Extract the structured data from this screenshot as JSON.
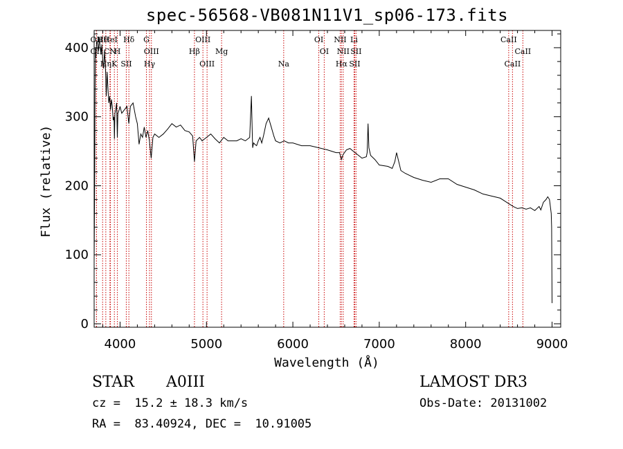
{
  "chart_data": {
    "type": "line",
    "title": "spec-56568-VB081N11V1_sp06-173.fits",
    "xlabel": "Wavelength (Å)",
    "ylabel": "Flux (relative)",
    "xlim": [
      3700,
      9100
    ],
    "ylim": [
      -5,
      425
    ],
    "x_ticks": [
      "4000",
      "5000",
      "6000",
      "7000",
      "8000",
      "9000"
    ],
    "y_ticks": [
      "0",
      "100",
      "200",
      "300",
      "400"
    ],
    "grid": false,
    "series": [
      {
        "name": "spectrum flux",
        "x": [
          3700,
          3703,
          3706,
          3708,
          3710,
          3712,
          3716,
          3720,
          3730,
          3740,
          3750,
          3760,
          3770,
          3780,
          3790,
          3800,
          3810,
          3820,
          3830,
          3840,
          3850,
          3860,
          3870,
          3880,
          3890,
          3900,
          3910,
          3920,
          3930,
          3935,
          3940,
          3950,
          3960,
          3968,
          3975,
          3990,
          4000,
          4020,
          4050,
          4080,
          4101,
          4120,
          4150,
          4180,
          4200,
          4220,
          4240,
          4260,
          4280,
          4300,
          4320,
          4340,
          4360,
          4380,
          4400,
          4450,
          4500,
          4550,
          4600,
          4650,
          4700,
          4750,
          4800,
          4840,
          4861,
          4880,
          4920,
          4950,
          5000,
          5050,
          5100,
          5150,
          5200,
          5250,
          5300,
          5350,
          5400,
          5450,
          5500,
          5520,
          5530,
          5535,
          5545,
          5560,
          5580,
          5600,
          5620,
          5640,
          5660,
          5690,
          5720,
          5750,
          5780,
          5800,
          5850,
          5900,
          5950,
          6000,
          6100,
          6200,
          6300,
          6400,
          6450,
          6500,
          6540,
          6563,
          6580,
          6620,
          6660,
          6700,
          6750,
          6800,
          6850,
          6860,
          6870,
          6880,
          6900,
          6950,
          7000,
          7100,
          7150,
          7180,
          7200,
          7250,
          7300,
          7400,
          7500,
          7600,
          7700,
          7800,
          7900,
          8000,
          8100,
          8200,
          8300,
          8400,
          8450,
          8500,
          8550,
          8600,
          8650,
          8700,
          8750,
          8800,
          8850,
          8870,
          8900,
          8930,
          8950,
          8970,
          8990,
          8995,
          9000
        ],
        "values": [
          90,
          150,
          200,
          260,
          320,
          360,
          400,
          385,
          410,
          405,
          395,
          415,
          400,
          390,
          405,
          380,
          370,
          395,
          375,
          330,
          365,
          340,
          320,
          330,
          310,
          325,
          315,
          295,
          300,
          268,
          305,
          310,
          320,
          270,
          305,
          310,
          315,
          305,
          310,
          315,
          290,
          315,
          320,
          300,
          290,
          260,
          275,
          270,
          285,
          270,
          280,
          265,
          240,
          270,
          275,
          270,
          275,
          282,
          290,
          285,
          288,
          280,
          278,
          272,
          235,
          265,
          270,
          265,
          270,
          275,
          268,
          262,
          270,
          265,
          265,
          265,
          268,
          265,
          270,
          330,
          278,
          255,
          262,
          260,
          258,
          265,
          270,
          262,
          272,
          290,
          298,
          285,
          272,
          265,
          262,
          265,
          262,
          262,
          258,
          258,
          255,
          252,
          250,
          248,
          248,
          238,
          245,
          252,
          254,
          250,
          245,
          240,
          242,
          248,
          290,
          255,
          244,
          238,
          230,
          228,
          225,
          235,
          248,
          222,
          218,
          212,
          208,
          205,
          210,
          210,
          202,
          198,
          194,
          188,
          185,
          182,
          178,
          174,
          170,
          167,
          168,
          166,
          168,
          164,
          170,
          165,
          176,
          180,
          184,
          180,
          160,
          140,
          30
        ]
      }
    ],
    "line_markers": [
      {
        "label": "Hθ",
        "wavelength": 3798
      },
      {
        "label": "OII",
        "wavelength": 3727
      },
      {
        "label": "Hη",
        "wavelength": 3835
      },
      {
        "label": "OII",
        "wavelength": 3727
      },
      {
        "label": "CN",
        "wavelength": 3883
      },
      {
        "label": "K",
        "wavelength": 3934
      },
      {
        "label": "HeI",
        "wavelength": 3889
      },
      {
        "label": "H",
        "wavelength": 3969
      },
      {
        "label": "SII",
        "wavelength": 4072
      },
      {
        "label": "Hδ",
        "wavelength": 4102
      },
      {
        "label": "OIII",
        "wavelength": 4363
      },
      {
        "label": "Hγ",
        "wavelength": 4341
      },
      {
        "label": "G",
        "wavelength": 4305
      },
      {
        "label": "Hβ",
        "wavelength": 4861
      },
      {
        "label": "OIII",
        "wavelength": 5007
      },
      {
        "label": "OIII",
        "wavelength": 4959
      },
      {
        "label": "Mg",
        "wavelength": 5175
      },
      {
        "label": "Na",
        "wavelength": 5894
      },
      {
        "label": "OI",
        "wavelength": 6300
      },
      {
        "label": "OI",
        "wavelength": 6363
      },
      {
        "label": "Hα",
        "wavelength": 6563
      },
      {
        "label": "NII",
        "wavelength": 6548
      },
      {
        "label": "NII",
        "wavelength": 6583
      },
      {
        "label": "SII",
        "wavelength": 6716
      },
      {
        "label": "Li",
        "wavelength": 6708
      },
      {
        "label": "SII",
        "wavelength": 6731
      },
      {
        "label": "CaII",
        "wavelength": 8542
      },
      {
        "label": "CaII",
        "wavelength": 8498
      },
      {
        "label": "CaII",
        "wavelength": 8662
      }
    ],
    "marker_color": "#c80000"
  },
  "info": {
    "object_class": "STAR",
    "subclass": "A0III",
    "survey": "LAMOST DR3",
    "redshift": "cz =  15.2 ± 18.3 km/s",
    "obs_date": "Obs-Date: 20131002",
    "coords": "RA =  83.40924, DEC =  10.91005"
  }
}
